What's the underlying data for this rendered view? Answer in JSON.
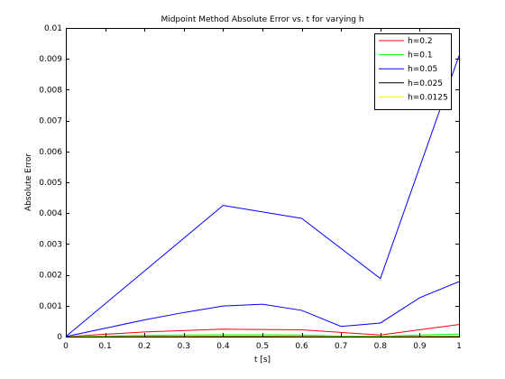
{
  "chart_data": {
    "type": "line",
    "title": "Midpoint Method Absolute Error vs. t for varying h",
    "xlabel": "t [s]",
    "ylabel": "Absolute Error",
    "xlim": [
      0,
      1
    ],
    "ylim": [
      0,
      0.01
    ],
    "x_ticks": [
      0,
      0.1,
      0.2,
      0.3,
      0.4,
      0.5,
      0.6,
      0.7,
      0.8,
      0.9,
      1
    ],
    "x_tick_labels": [
      "0",
      "0.1",
      "0.2",
      "0.3",
      "0.4",
      "0.5",
      "0.6",
      "0.7",
      "0.8",
      "0.9",
      "1"
    ],
    "y_ticks": [
      0,
      0.001,
      0.002,
      0.003,
      0.004,
      0.005,
      0.006,
      0.007,
      0.008,
      0.009,
      0.01
    ],
    "y_tick_labels": [
      "0",
      "0.001",
      "0.002",
      "0.003",
      "0.004",
      "0.005",
      "0.006",
      "0.007",
      "0.008",
      "0.009",
      "0.01"
    ],
    "grid": false,
    "legend_position": "top-right",
    "series": [
      {
        "name": "h=0.2",
        "color": "#ff0000",
        "x": [
          0,
          0.2,
          0.4,
          0.6,
          0.8,
          1.0
        ],
        "y": [
          0,
          0.00015,
          0.00024,
          0.00022,
          5e-05,
          0.00039
        ],
        "in_legend": true
      },
      {
        "name": "h=0.1",
        "color": "#00ff00",
        "x": [
          0,
          0.1,
          0.2,
          0.3,
          0.4,
          0.5,
          0.6,
          0.7,
          0.8,
          0.9,
          1.0
        ],
        "y": [
          0,
          2e-05,
          4e-05,
          5e-05,
          6e-05,
          6e-05,
          5e-05,
          2e-05,
          1e-05,
          5e-05,
          8e-05
        ],
        "in_legend": true
      },
      {
        "name": "h=0.05",
        "color": "#0000ff",
        "x": [
          0,
          0.4,
          0.6,
          0.8,
          1.0
        ],
        "y": [
          0,
          0.00425,
          0.00383,
          0.00188,
          0.0091
        ],
        "in_legend": true
      },
      {
        "name": "h=0.025",
        "color": "#000000",
        "x": [
          0,
          0.1,
          0.2,
          0.3,
          0.4,
          0.5,
          0.6,
          0.7,
          0.8,
          0.9,
          1.0
        ],
        "y": [
          0,
          5e-06,
          1e-05,
          1.2e-05,
          1.4e-05,
          1.4e-05,
          1.2e-05,
          5e-06,
          2e-06,
          1e-05,
          1.5e-05
        ],
        "in_legend": true
      },
      {
        "name": "h=0.0125",
        "color": "#ffff00",
        "x": [
          0,
          0.1,
          0.2,
          0.3,
          0.4,
          0.5,
          0.6,
          0.7,
          0.8,
          0.9,
          1.0
        ],
        "y": [
          0,
          1e-06,
          2e-06,
          3e-06,
          3e-06,
          3e-06,
          3e-06,
          1e-06,
          5e-07,
          2e-06,
          4e-06
        ],
        "in_legend": true
      },
      {
        "name": "",
        "color": "#0000ff",
        "x": [
          0,
          0.1,
          0.2,
          0.3,
          0.4,
          0.5,
          0.6,
          0.7,
          0.8,
          0.9,
          1.0
        ],
        "y": [
          0,
          0.00027,
          0.00054,
          0.00078,
          0.00099,
          0.00105,
          0.00085,
          0.00033,
          0.00044,
          0.00126,
          0.00178
        ],
        "in_legend": false
      }
    ]
  }
}
